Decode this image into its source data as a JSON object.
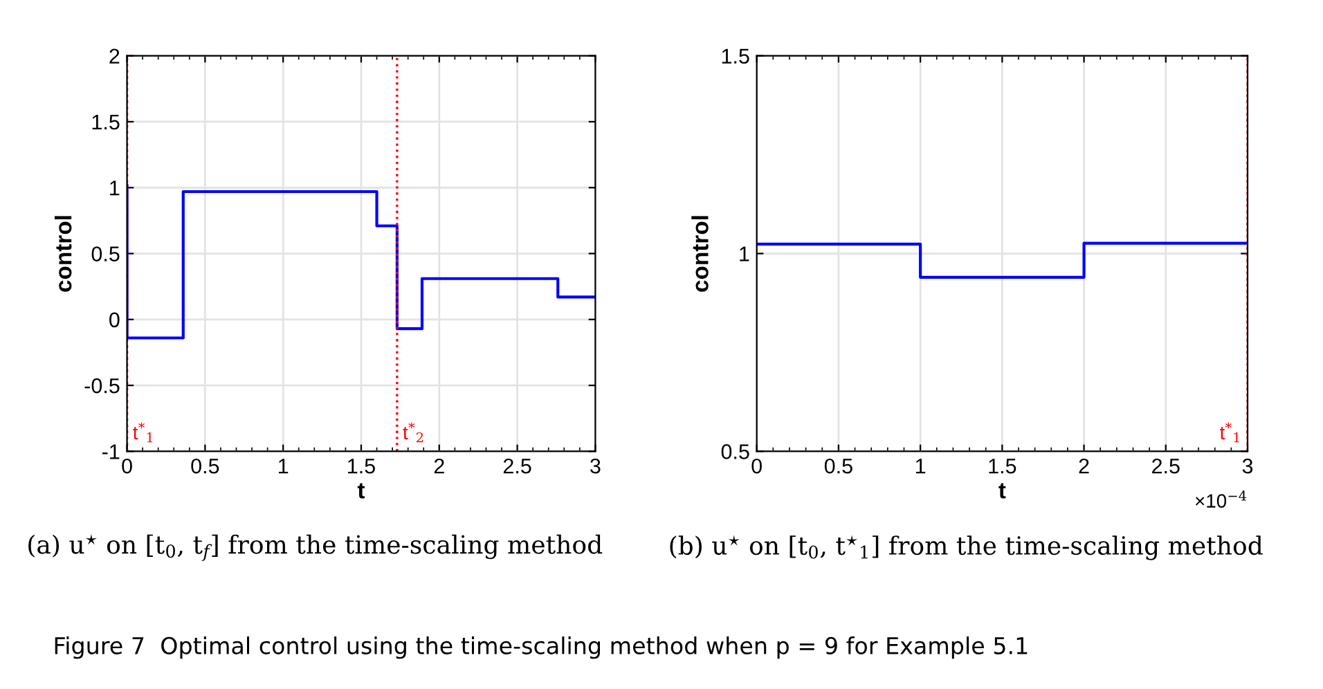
{
  "chart_data": [
    {
      "type": "step",
      "ylabel": "control",
      "xlabel": "t",
      "xlim": [
        0,
        3
      ],
      "ylim": [
        -1,
        2
      ],
      "xticks": [
        0,
        0.5,
        1,
        1.5,
        2,
        2.5,
        3
      ],
      "yticks": [
        -1,
        -0.5,
        0,
        0.5,
        1,
        1.5,
        2
      ],
      "grid": true,
      "line_style": "solid",
      "series": [
        {
          "color": "#0000ff",
          "x": [
            0,
            0.0003,
            0.36,
            1.6,
            1.73,
            1.89,
            2.76,
            3
          ],
          "values": [
            1.02,
            -0.14,
            0.97,
            0.71,
            -0.07,
            0.31,
            0.17,
            0.17
          ]
        }
      ],
      "ref_lines": [
        {
          "axis": "x",
          "value": 0.0003,
          "label": "t$^{*}$$_{1}$",
          "color": "#ff0000",
          "line_style": "dotted"
        },
        {
          "axis": "x",
          "value": 1.73,
          "label": "t$^{*}$$_{2}$",
          "color": "#ff0000",
          "line_style": "dotted"
        }
      ],
      "annotations": [
        "(a) u$^{⋆}$ on [t$_{0}$, t$_{f}$] from the time-scaling method",
        "Figure 7  Optimal control using the time-scaling method when p = 9 for Example 5.1"
      ]
    },
    {
      "type": "step",
      "ylabel": "control",
      "xlabel": "t",
      "xlim": [
        0,
        3
      ],
      "ylim": [
        0.5,
        1.5
      ],
      "xticks": [
        0,
        0.5,
        1,
        1.5,
        2,
        2.5,
        3
      ],
      "yticks": [
        0.5,
        1,
        1.5
      ],
      "grid": true,
      "line_style": "solid",
      "series": [
        {
          "color": "#0000ff",
          "x": [
            0,
            1,
            2,
            3
          ],
          "values": [
            1.024,
            0.94,
            1.026,
            1.026
          ]
        }
      ],
      "ref_lines": [
        {
          "axis": "x",
          "value": 3,
          "label": "t$^{*}$$_{1}$",
          "color": "#ff0000",
          "line_style": "dotted"
        }
      ],
      "annotations": [
        "×10$^{−4}$",
        "(b) u$^{⋆}$ on [t$_{0}$, t$^{⋆}$$_{1}$] from the time-scaling method"
      ]
    }
  ]
}
